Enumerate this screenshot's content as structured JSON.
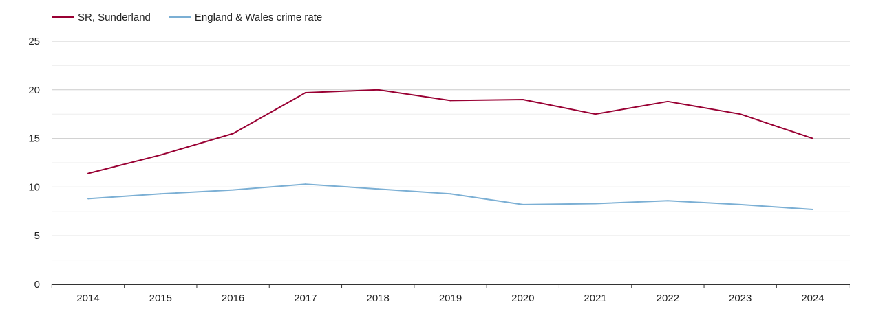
{
  "chart_data": {
    "type": "line",
    "title": "",
    "xlabel": "",
    "ylabel": "",
    "x": [
      "2014",
      "2015",
      "2016",
      "2017",
      "2018",
      "2019",
      "2020",
      "2021",
      "2022",
      "2023",
      "2024"
    ],
    "ylim": [
      0,
      25
    ],
    "yticks": [
      "0",
      "5",
      "10",
      "15",
      "20",
      "25"
    ],
    "grid": true,
    "legend_position": "top-left",
    "series": [
      {
        "name": "SR, Sunderland",
        "color": "#990033",
        "values": [
          11.4,
          13.3,
          15.5,
          19.7,
          20.0,
          18.9,
          19.0,
          17.5,
          18.8,
          17.5,
          15.0
        ]
      },
      {
        "name": "England & Wales crime rate",
        "color": "#7bafd4",
        "values": [
          8.8,
          9.3,
          9.7,
          10.3,
          9.8,
          9.3,
          8.2,
          8.3,
          8.6,
          8.2,
          7.7
        ]
      }
    ]
  }
}
